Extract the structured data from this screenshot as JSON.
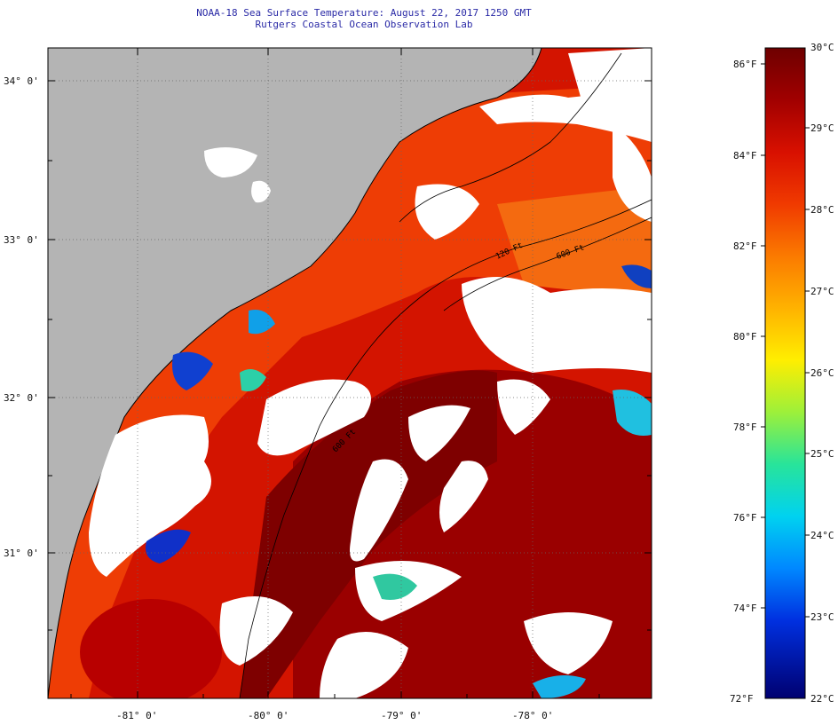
{
  "header": {
    "title": "NOAA-18 Sea Surface Temperature:  August 22, 2017 1250 GMT",
    "subtitle": "Rutgers Coastal Ocean Observation Lab"
  },
  "map": {
    "lat_labels": [
      "34° 0'",
      "33° 0'",
      "32° 0'",
      "31° 0'"
    ],
    "lon_labels": [
      "-81° 0'",
      "-80° 0'",
      "-79° 0'",
      "-78° 0'"
    ],
    "isobath_labels": [
      "120 Ft",
      "600 Ft",
      "600 Ft"
    ],
    "colors": {
      "land": "#b4b4b4",
      "cloud": "#ffffff",
      "warm_max": "#7a0000"
    }
  },
  "colorbar": {
    "fahrenheit": [
      "86°F",
      "84°F",
      "82°F",
      "80°F",
      "78°F",
      "76°F",
      "74°F",
      "72°F"
    ],
    "celsius": [
      "30°C",
      "29°C",
      "28°C",
      "27°C",
      "26°C",
      "25°C",
      "24°C",
      "23°C",
      "22°C"
    ]
  }
}
